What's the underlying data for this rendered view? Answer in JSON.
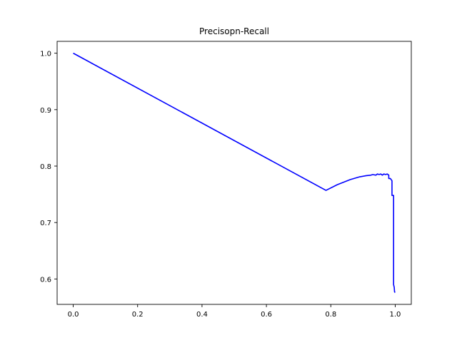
{
  "chart_data": {
    "type": "line",
    "title": "Precisopn-Recall",
    "xlabel": "",
    "ylabel": "",
    "xlim": [
      -0.05,
      1.05
    ],
    "ylim": [
      0.555,
      1.021
    ],
    "grid": false,
    "x_ticks": [
      {
        "value": 0.0,
        "label": "0.0"
      },
      {
        "value": 0.2,
        "label": "0.2"
      },
      {
        "value": 0.4,
        "label": "0.4"
      },
      {
        "value": 0.6,
        "label": "0.6"
      },
      {
        "value": 0.8,
        "label": "0.8"
      },
      {
        "value": 1.0,
        "label": "1.0"
      }
    ],
    "y_ticks": [
      {
        "value": 0.6,
        "label": "0.6"
      },
      {
        "value": 0.7,
        "label": "0.7"
      },
      {
        "value": 0.8,
        "label": "0.8"
      },
      {
        "value": 0.9,
        "label": "0.9"
      },
      {
        "value": 1.0,
        "label": "1.0"
      }
    ],
    "series": [
      {
        "color": "#0000ff",
        "x": [
          0.0,
          0.785,
          0.82,
          0.86,
          0.89,
          0.91,
          0.925,
          0.93,
          0.94,
          0.945,
          0.95,
          0.955,
          0.96,
          0.965,
          0.97,
          0.975,
          0.98,
          0.98,
          0.985,
          0.99,
          0.99,
          0.993,
          0.995,
          0.995,
          0.997,
          0.998,
          1.0
        ],
        "y": [
          1.0,
          0.757,
          0.767,
          0.776,
          0.781,
          0.783,
          0.784,
          0.785,
          0.784,
          0.786,
          0.785,
          0.786,
          0.784,
          0.786,
          0.785,
          0.786,
          0.784,
          0.778,
          0.778,
          0.774,
          0.748,
          0.748,
          0.748,
          0.59,
          0.585,
          0.577,
          0.576
        ]
      }
    ]
  }
}
